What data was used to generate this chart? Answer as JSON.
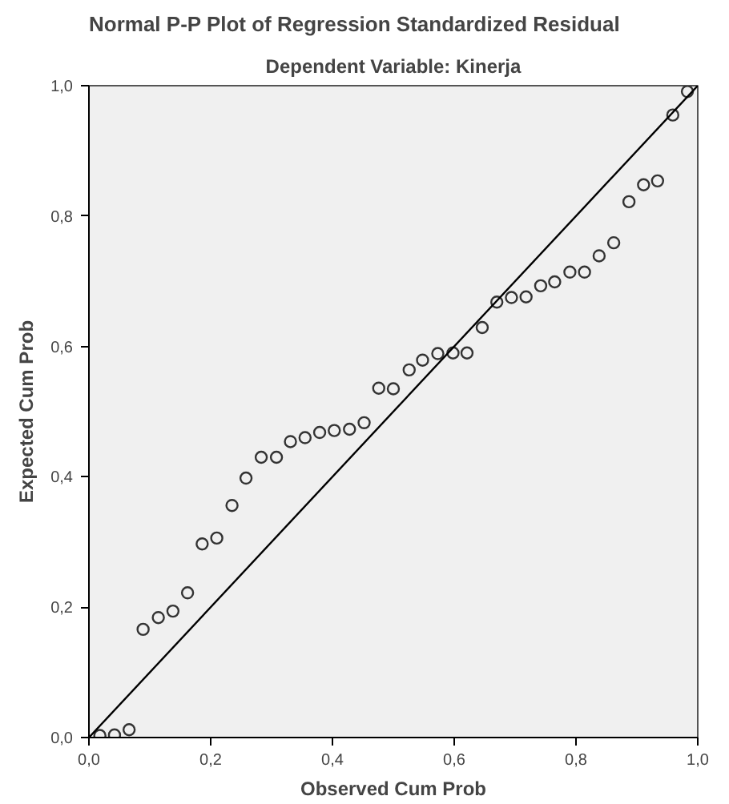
{
  "chart_data": {
    "type": "scatter",
    "title": "Normal P-P Plot of Regression Standardized Residual",
    "subtitle": "Dependent Variable: Kinerja",
    "xlabel": "Observed Cum Prob",
    "ylabel": "Expected Cum Prob",
    "xlim": [
      0,
      1
    ],
    "ylim": [
      0,
      1
    ],
    "xticks": [
      {
        "value": 0,
        "label": "0,0"
      },
      {
        "value": 0.2,
        "label": "0,2"
      },
      {
        "value": 0.4,
        "label": "0,4"
      },
      {
        "value": 0.6,
        "label": "0,6"
      },
      {
        "value": 0.8,
        "label": "0,8"
      },
      {
        "value": 1,
        "label": "1,0"
      }
    ],
    "yticks": [
      {
        "value": 0,
        "label": "0,0"
      },
      {
        "value": 0.2,
        "label": "0,2"
      },
      {
        "value": 0.4,
        "label": "0,4"
      },
      {
        "value": 0.6,
        "label": "0,6"
      },
      {
        "value": 0.8,
        "label": "0,8"
      },
      {
        "value": 1,
        "label": "1,0"
      }
    ],
    "grid": false,
    "series": [
      {
        "marker": "circle",
        "color": "#333333",
        "x": [
          0.018,
          0.042,
          0.066,
          0.089,
          0.114,
          0.138,
          0.162,
          0.186,
          0.21,
          0.235,
          0.258,
          0.283,
          0.308,
          0.331,
          0.355,
          0.379,
          0.403,
          0.428,
          0.452,
          0.476,
          0.5,
          0.526,
          0.548,
          0.573,
          0.598,
          0.621,
          0.646,
          0.67,
          0.694,
          0.718,
          0.742,
          0.765,
          0.79,
          0.814,
          0.838,
          0.862,
          0.887,
          0.911,
          0.934,
          0.959,
          0.983
        ],
        "values": [
          0.003,
          0.004,
          0.012,
          0.166,
          0.184,
          0.194,
          0.222,
          0.297,
          0.306,
          0.356,
          0.398,
          0.43,
          0.43,
          0.454,
          0.46,
          0.468,
          0.471,
          0.473,
          0.483,
          0.536,
          0.535,
          0.564,
          0.579,
          0.589,
          0.59,
          0.59,
          0.629,
          0.668,
          0.675,
          0.676,
          0.693,
          0.699,
          0.714,
          0.714,
          0.739,
          0.759,
          0.822,
          0.848,
          0.854,
          0.955,
          0.991
        ]
      },
      {
        "type": "line",
        "marker": "none",
        "color": "#000000",
        "x": [
          0,
          1
        ],
        "values": [
          0,
          1
        ]
      }
    ]
  }
}
